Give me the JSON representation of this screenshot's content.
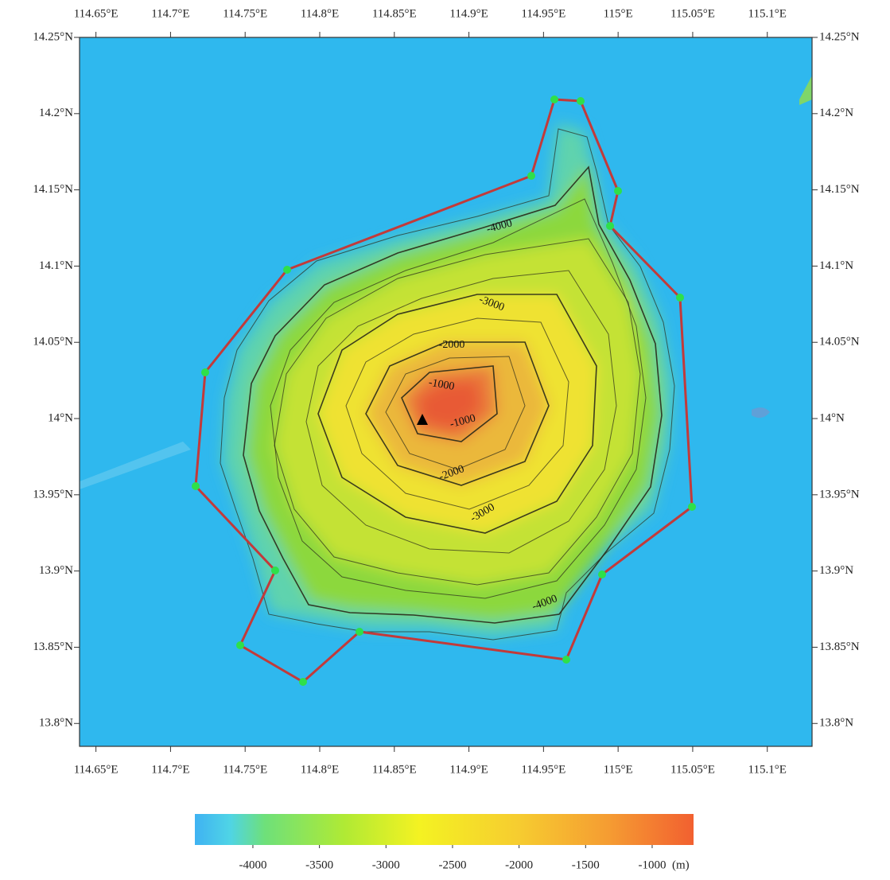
{
  "map": {
    "xlim": [
      114.639,
      115.13
    ],
    "ylim": [
      13.785,
      14.25
    ],
    "xticks": [
      {
        "value": 114.65,
        "label": "114.65°E"
      },
      {
        "value": 114.7,
        "label": "114.7°E"
      },
      {
        "value": 114.75,
        "label": "114.75°E"
      },
      {
        "value": 114.8,
        "label": "114.8°E"
      },
      {
        "value": 114.85,
        "label": "114.85°E"
      },
      {
        "value": 114.9,
        "label": "114.9°E"
      },
      {
        "value": 114.95,
        "label": "114.95°E"
      },
      {
        "value": 115,
        "label": "115°E"
      },
      {
        "value": 115.05,
        "label": "115.05°E"
      },
      {
        "value": 115.1,
        "label": "115.1°E"
      }
    ],
    "yticks": [
      {
        "value": 14.25,
        "label": "14.25°N"
      },
      {
        "value": 14.2,
        "label": "14.2°N"
      },
      {
        "value": 14.15,
        "label": "14.15°N"
      },
      {
        "value": 14.1,
        "label": "14.1°N"
      },
      {
        "value": 14.05,
        "label": "14.05°N"
      },
      {
        "value": 14,
        "label": "14°N"
      },
      {
        "value": 13.95,
        "label": "13.95°N"
      },
      {
        "value": 13.9,
        "label": "13.9°N"
      },
      {
        "value": 13.85,
        "label": "13.85°N"
      },
      {
        "value": 13.8,
        "label": "13.8°N"
      }
    ],
    "contour_labels": [
      "-4000",
      "-3000",
      "-2000",
      "-1000",
      "-1000",
      "-2000",
      "-3000",
      "-4000"
    ]
  },
  "colorbar": {
    "clim": [
      -4436,
      -689
    ],
    "ticks": [
      -4000,
      -3500,
      -3000,
      -2500,
      -2000,
      -1500,
      -1000
    ],
    "unit": "(m)"
  }
}
